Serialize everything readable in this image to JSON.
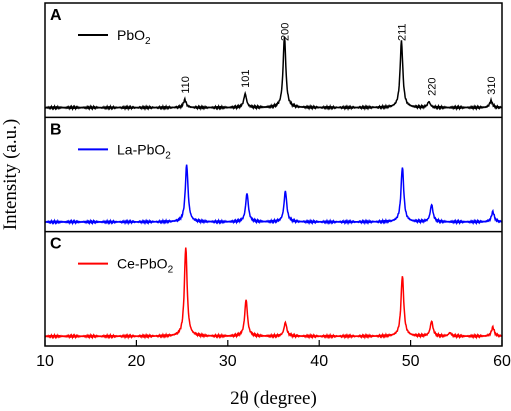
{
  "chart_data": {
    "type": "line",
    "xlabel": "2θ (degree)",
    "ylabel": "Intensity (a.u.)",
    "xlim": [
      10,
      60
    ],
    "xticks": [
      "10",
      "20",
      "30",
      "40",
      "50",
      "60"
    ],
    "grid": false,
    "panels": [
      {
        "letter": "A",
        "legend": {
          "base": "PbO",
          "sub": "2"
        },
        "color": "#000000",
        "baseline_fraction": 0.05,
        "peaks": [
          {
            "x": 25.3,
            "h": 0.07
          },
          {
            "x": 31.9,
            "h": 0.12
          },
          {
            "x": 36.2,
            "h": 0.62
          },
          {
            "x": 49.0,
            "h": 0.58
          },
          {
            "x": 52.0,
            "h": 0.05
          },
          {
            "x": 58.8,
            "h": 0.06
          }
        ],
        "annotations": [
          {
            "text": "110",
            "x": 25.3
          },
          {
            "text": "101",
            "x": 31.9
          },
          {
            "text": "200",
            "x": 36.2
          },
          {
            "text": "211",
            "x": 49.0
          },
          {
            "text": "220",
            "x": 52.3
          },
          {
            "text": "310",
            "x": 58.8
          }
        ]
      },
      {
        "letter": "B",
        "legend": {
          "base": "La-PbO",
          "sub": "2"
        },
        "color": "#0000ff",
        "baseline_fraction": 0.05,
        "peaks": [
          {
            "x": 25.5,
            "h": 0.5
          },
          {
            "x": 32.1,
            "h": 0.25
          },
          {
            "x": 36.3,
            "h": 0.27
          },
          {
            "x": 49.1,
            "h": 0.48
          },
          {
            "x": 52.3,
            "h": 0.15
          },
          {
            "x": 59.0,
            "h": 0.09
          }
        ],
        "annotations": []
      },
      {
        "letter": "C",
        "legend": {
          "base": "Ce-PbO",
          "sub": "2"
        },
        "color": "#ff0000",
        "baseline_fraction": 0.05,
        "peaks": [
          {
            "x": 25.4,
            "h": 0.78
          },
          {
            "x": 32.0,
            "h": 0.32
          },
          {
            "x": 36.3,
            "h": 0.12
          },
          {
            "x": 49.1,
            "h": 0.53
          },
          {
            "x": 52.3,
            "h": 0.13
          },
          {
            "x": 54.3,
            "h": 0.03
          },
          {
            "x": 59.0,
            "h": 0.08
          }
        ],
        "annotations": []
      }
    ]
  }
}
